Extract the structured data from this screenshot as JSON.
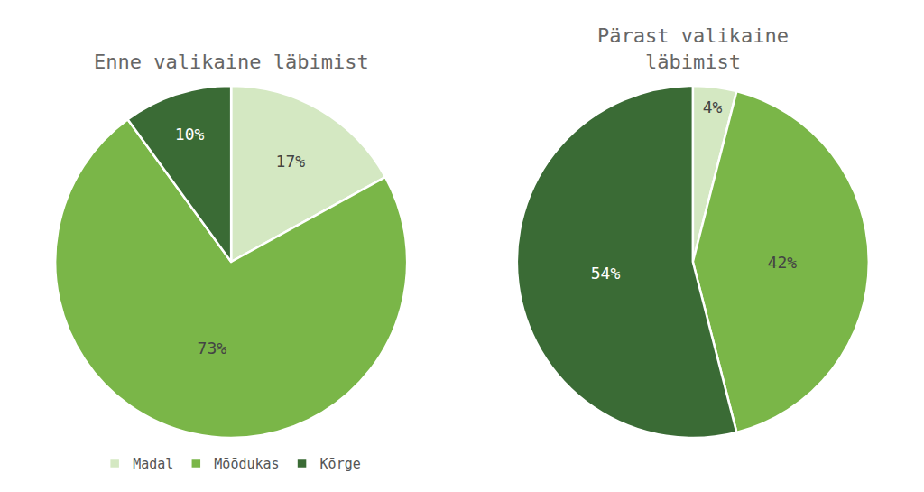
{
  "chart_data": [
    {
      "type": "pie",
      "title": "Enne valikaine läbimist",
      "categories": [
        "Madal",
        "Mõõdukas",
        "Kõrge"
      ],
      "values": [
        17,
        73,
        10
      ],
      "value_labels": [
        "17%",
        "73%",
        "10%"
      ],
      "colors": [
        "#d4e8c2",
        "#7ab648",
        "#3a6b35"
      ],
      "data_labels": true,
      "legend": "bottom"
    },
    {
      "type": "pie",
      "title": "Pärast valikaine\nläbimist",
      "categories": [
        "Madal",
        "Mõõdukas",
        "Kõrge"
      ],
      "values": [
        4,
        42,
        54
      ],
      "value_labels": [
        "4%",
        "42%",
        "54%"
      ],
      "colors": [
        "#d4e8c2",
        "#7ab648",
        "#3a6b35"
      ],
      "data_labels": true,
      "legend": "bottom"
    }
  ]
}
